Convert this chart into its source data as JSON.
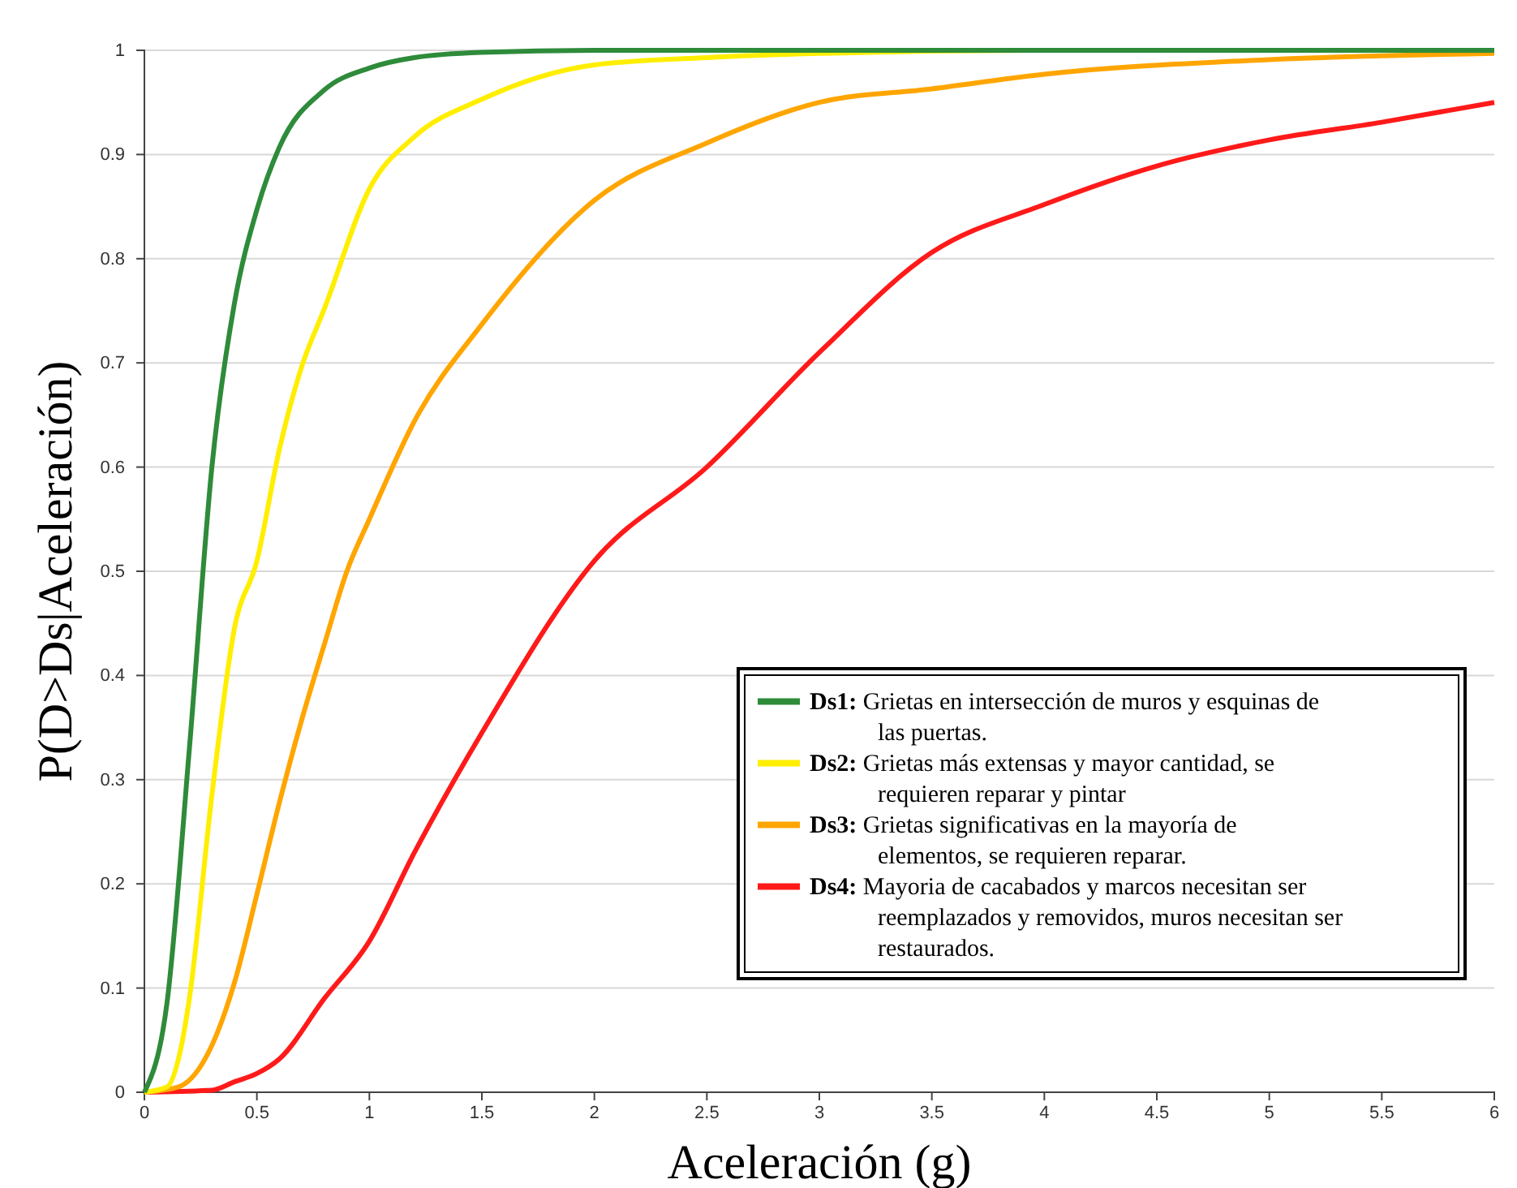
{
  "chart_data": {
    "type": "line",
    "xlabel": "Aceleración (g)",
    "ylabel": "P(D>Ds|Aceleración)",
    "xlim": [
      0,
      6
    ],
    "ylim": [
      0,
      1
    ],
    "xticks": [
      0,
      0.5,
      1,
      1.5,
      2,
      2.5,
      3,
      3.5,
      4,
      4.5,
      5,
      5.5,
      6
    ],
    "yticks": [
      0,
      0.1,
      0.2,
      0.3,
      0.4,
      0.5,
      0.6,
      0.7,
      0.8,
      0.9,
      1
    ],
    "grid": "y",
    "legend": "bottom right",
    "marker": "none",
    "line_style": "solid",
    "series": [
      {
        "name": "Ds1: Grietas en intersección de muros y esquinas de las puertas.",
        "color": "#2e8b3a",
        "x": [
          0,
          0.1,
          0.2,
          0.3,
          0.4,
          0.5,
          0.6,
          0.8,
          1,
          1.2,
          1.5,
          2,
          3,
          6
        ],
        "values": [
          0,
          0.085,
          0.33,
          0.6,
          0.757,
          0.847,
          0.907,
          0.962,
          0.983,
          0.993,
          0.998,
          1,
          1,
          1
        ]
      },
      {
        "name": "Ds2: Grietas más extensas y mayor cantidad, se requieren reparar y pintar",
        "color": "#ffee00",
        "x": [
          0,
          0.1,
          0.16,
          0.2,
          0.3,
          0.4,
          0.5,
          0.6,
          0.7,
          0.8,
          1,
          1.2,
          1.5,
          2,
          2.5,
          3,
          4,
          5,
          6
        ],
        "values": [
          0,
          0.005,
          0.04,
          0.09,
          0.285,
          0.445,
          0.51,
          0.617,
          0.697,
          0.752,
          0.867,
          0.917,
          0.953,
          0.986,
          0.993,
          0.997,
          1,
          1,
          1
        ]
      },
      {
        "name": "Ds3: Grietas significativas en la mayoría de elementos, se requieren reparar.",
        "color": "#ffa500",
        "x": [
          0,
          0.15,
          0.3,
          0.4,
          0.5,
          0.6,
          0.7,
          0.8,
          0.9,
          1,
          1.2,
          1.5,
          2,
          2.5,
          3,
          3.5,
          4,
          5,
          6
        ],
        "values": [
          0,
          0.005,
          0.045,
          0.105,
          0.19,
          0.278,
          0.358,
          0.43,
          0.5,
          0.55,
          0.644,
          0.737,
          0.856,
          0.911,
          0.95,
          0.963,
          0.977,
          0.991,
          0.997
        ]
      },
      {
        "name": "Ds4: Mayoria de cacabados y marcos necesitan ser reemplazados y removidos, muros necesitan ser restaurados.",
        "color": "#ff1a1a",
        "x": [
          0,
          0.3,
          0.4,
          0.5,
          0.6,
          0.8,
          1,
          1.2,
          1.5,
          2,
          2.5,
          3,
          3.5,
          4,
          4.5,
          5,
          5.5,
          6
        ],
        "values": [
          0,
          0.002,
          0.01,
          0.018,
          0.032,
          0.09,
          0.145,
          0.23,
          0.345,
          0.51,
          0.6,
          0.71,
          0.806,
          0.852,
          0.889,
          0.914,
          0.931,
          0.95
        ]
      }
    ]
  }
}
